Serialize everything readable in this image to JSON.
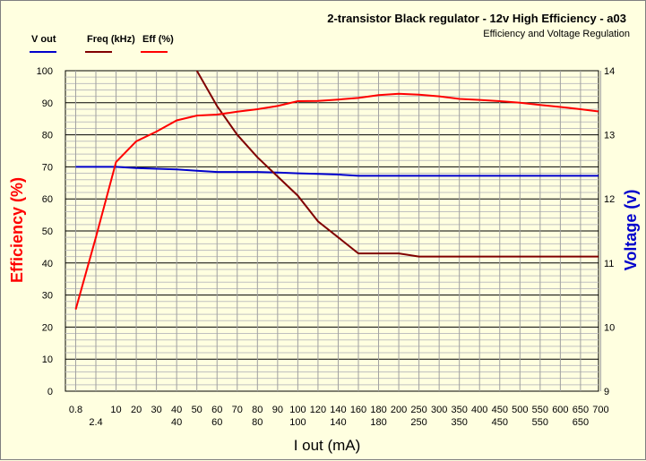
{
  "chart_data": {
    "type": "line",
    "title": "2-transistor Black regulator  - 12v High Efficiency - a03",
    "subtitle": "Efficiency and Voltage Regulation",
    "xlabel": "I out (mA)",
    "ylabel_left": "Efficiency (%)",
    "ylabel_right": "Voltage (v)",
    "ylim_left": [
      0,
      100
    ],
    "ylim_right": [
      9,
      14
    ],
    "grid": true,
    "legend_position": "top-left",
    "x_ticks_row1": [
      "0.8",
      "10",
      "20",
      "30",
      "40",
      "50",
      "60",
      "70",
      "80",
      "90",
      "100",
      "120",
      "140",
      "160",
      "180",
      "200",
      "250",
      "300",
      "350",
      "400",
      "450",
      "500",
      "550",
      "600",
      "650",
      "700"
    ],
    "x_ticks_row2": [
      "2.4",
      "40",
      "60",
      "80",
      "100",
      "140",
      "180",
      "250",
      "350",
      "450",
      "550",
      "650"
    ],
    "y_ticks_left": [
      "0",
      "10",
      "20",
      "30",
      "40",
      "50",
      "60",
      "70",
      "80",
      "90",
      "100"
    ],
    "y_ticks_right": [
      "9",
      "10",
      "11",
      "12",
      "13",
      "14"
    ],
    "x": [
      "0.8",
      "2.4",
      "10",
      "20",
      "30",
      "40",
      "50",
      "60",
      "70",
      "80",
      "90",
      "100",
      "120",
      "140",
      "160",
      "180",
      "200",
      "250",
      "300",
      "350",
      "400",
      "450",
      "500",
      "550",
      "600",
      "650",
      "700"
    ],
    "series": [
      {
        "name": "V out",
        "axis": "right",
        "color": "#0000cc",
        "values": [
          12.5,
          12.5,
          12.5,
          12.48,
          12.47,
          12.46,
          12.44,
          12.42,
          12.42,
          12.42,
          12.41,
          12.4,
          12.39,
          12.38,
          12.36,
          12.36,
          12.36,
          12.36,
          12.36,
          12.36,
          12.36,
          12.36,
          12.36,
          12.36,
          12.36,
          12.36,
          12.36
        ]
      },
      {
        "name": "Freq  (kHz)",
        "axis": "left",
        "color": "#800000",
        "values": [
          null,
          null,
          null,
          null,
          null,
          null,
          100,
          89,
          80,
          73,
          67,
          61,
          53,
          48,
          43,
          43,
          43,
          42,
          42,
          42,
          42,
          42,
          42,
          42,
          42,
          42,
          42
        ]
      },
      {
        "name": "Eff  (%)",
        "axis": "left",
        "color": "#ff0000",
        "values": [
          25.5,
          48,
          71.5,
          78,
          81,
          84.5,
          86,
          86.3,
          87.2,
          88,
          89,
          90.5,
          90.6,
          91,
          91.5,
          92.4,
          92.8,
          92.5,
          92,
          91.2,
          90.9,
          90.5,
          90,
          89.3,
          88.7,
          88,
          87.2
        ]
      }
    ]
  }
}
